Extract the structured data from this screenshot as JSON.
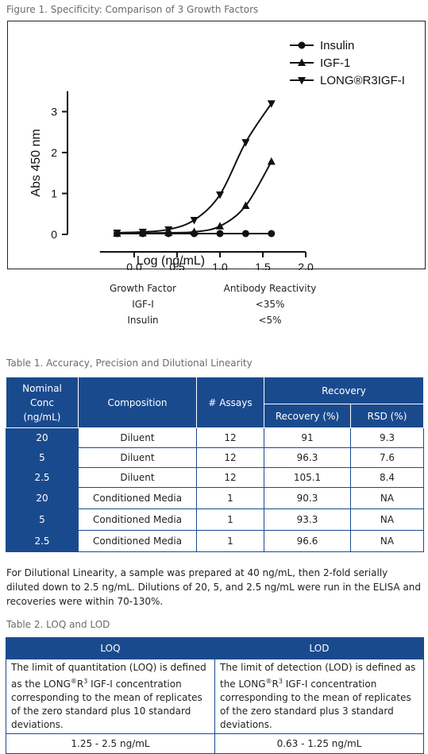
{
  "figure": {
    "caption": "Figure 1. Specificity: Comparison of 3 Growth Factors",
    "chart_data": {
      "type": "line",
      "xlabel": "Log (ng/mL)",
      "ylabel": "Abs 450 nm",
      "xlim": [
        -0.5,
        2.0
      ],
      "ylim": [
        -0.35,
        3.5
      ],
      "x_ticks": [
        "0.0",
        "0.5",
        "1.0",
        "1.5",
        "2.0"
      ],
      "y_ticks": [
        "0",
        "1",
        "2",
        "3"
      ],
      "x_tick_values": [
        0.0,
        0.5,
        1.0,
        1.5,
        2.0
      ],
      "y_tick_values": [
        0,
        1,
        2,
        3
      ],
      "legend_position": "top-right",
      "series": [
        {
          "name": "Insulin",
          "marker": "circle",
          "x": [
            -0.2,
            0.1,
            0.4,
            0.7,
            1.0,
            1.3,
            1.6
          ],
          "y": [
            0.02,
            0.02,
            0.02,
            0.02,
            0.02,
            0.02,
            0.02
          ]
        },
        {
          "name": "IGF-1",
          "marker": "triangle-up",
          "x": [
            -0.2,
            0.1,
            0.4,
            0.7,
            1.0,
            1.3,
            1.6
          ],
          "y": [
            0.02,
            0.03,
            0.04,
            0.06,
            0.2,
            0.7,
            1.78
          ]
        },
        {
          "name": "LONG®R3IGF-I",
          "marker": "triangle-down",
          "x": [
            -0.2,
            0.1,
            0.4,
            0.7,
            1.0,
            1.3,
            1.6
          ],
          "y": [
            0.04,
            0.06,
            0.12,
            0.35,
            0.97,
            2.25,
            3.2
          ]
        }
      ]
    }
  },
  "reactivity": {
    "header": [
      "Growth Factor",
      "Antibody Reactivity"
    ],
    "rows": [
      [
        "IGF-I",
        "<35%"
      ],
      [
        "Insulin",
        "<5%"
      ]
    ]
  },
  "table1": {
    "caption": "Table 1. Accuracy, Precision and Dilutional Linearity",
    "head": {
      "nominal_1": "Nominal",
      "nominal_2": "Conc",
      "nominal_3": "(ng/mL)",
      "composition": "Composition",
      "assays": "# Assays",
      "recovery": "Recovery",
      "recovery_pct": "Recovery (%)",
      "rsd": "RSD (%)"
    },
    "rows": [
      [
        "20",
        "Diluent",
        "12",
        "91",
        "9.3"
      ],
      [
        "5",
        "Diluent",
        "12",
        "96.3",
        "7.6"
      ],
      [
        "2.5",
        "Diluent",
        "12",
        "105.1",
        "8.4"
      ],
      [
        "20",
        "Conditioned Media",
        "1",
        "90.3",
        "NA"
      ],
      [
        "5",
        "Conditioned Media",
        "1",
        "93.3",
        "NA"
      ],
      [
        "2.5",
        "Conditioned Media",
        "1",
        "96.6",
        "NA"
      ]
    ]
  },
  "note": "For Dilutional Linearity, a sample was prepared at 40 ng/mL, then 2-fold serially diluted down to 2.5 ng/mL. Dilutions of 20, 5, and 2.5 ng/mL were run in the ELISA and recoveries were within 70-130%.",
  "table2": {
    "caption": "Table 2. LOQ and LOD",
    "head": [
      "LOQ",
      "LOD"
    ],
    "loq_text_a": "The limit of quantitation (LOQ) is defined as the LONG",
    "loq_text_b": "IGF-I concentration corresponding to the mean of replicates of the zero standard plus 10 standard deviations.",
    "lod_text_a": "The limit of detection (LOD) is defined as the LONG",
    "lod_text_b": "IGF-I concentration corresponding to the mean of replicates of the zero standard plus 3 standard deviations.",
    "sup_reg": "®",
    "r_label": "R",
    "sup_3": "3",
    "values": [
      "1.25 - 2.5 ng/mL",
      "0.63 - 1.25 ng/mL"
    ]
  }
}
